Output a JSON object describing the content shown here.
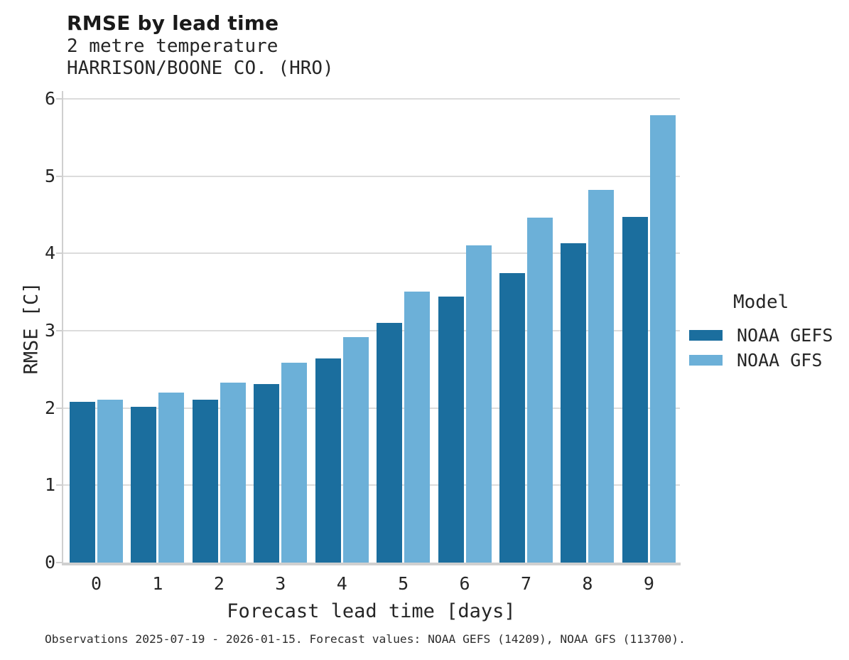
{
  "title": "RMSE by lead time",
  "subtitle": {
    "line1": "2 metre temperature",
    "line2": "HARRISON/BOONE CO. (HRO)"
  },
  "caption": "Observations 2025-07-19 - 2026-01-15. Forecast values: NOAA GEFS (14209), NOAA GFS (113700).",
  "legend": {
    "title": "Model",
    "items": [
      {
        "label": "NOAA GEFS",
        "color": "#1b6e9e"
      },
      {
        "label": "NOAA GFS",
        "color": "#6cb0d8"
      }
    ]
  },
  "colors": {
    "gefs_bar": "#1b6e9e",
    "gfs_bar": "#6cb0d8",
    "gridline": "#dcdcdc",
    "axis_spine": "#cfcfcf",
    "text": "#262626"
  },
  "chart_data": {
    "type": "bar",
    "title": "RMSE by lead time",
    "subtitle": [
      "2 metre temperature",
      "HARRISON/BOONE CO. (HRO)"
    ],
    "xlabel": "Forecast lead time [days]",
    "ylabel": "RMSE [C]",
    "categories": [
      0,
      1,
      2,
      3,
      4,
      5,
      6,
      7,
      8,
      9
    ],
    "series": [
      {
        "name": "NOAA GEFS",
        "color": "#1b6e9e",
        "values": [
          2.08,
          2.02,
          2.11,
          2.31,
          2.64,
          3.1,
          3.44,
          3.75,
          4.13,
          4.47
        ]
      },
      {
        "name": "NOAA GFS",
        "color": "#6cb0d8",
        "values": [
          2.11,
          2.2,
          2.33,
          2.59,
          2.92,
          3.51,
          4.1,
          4.46,
          4.82,
          5.79
        ]
      }
    ],
    "ylim": [
      0,
      6
    ],
    "yticks": [
      0,
      1,
      2,
      3,
      4,
      5,
      6
    ],
    "grid": true,
    "grid_axis": "y",
    "legend_position": "right",
    "legend_title": "Model"
  }
}
